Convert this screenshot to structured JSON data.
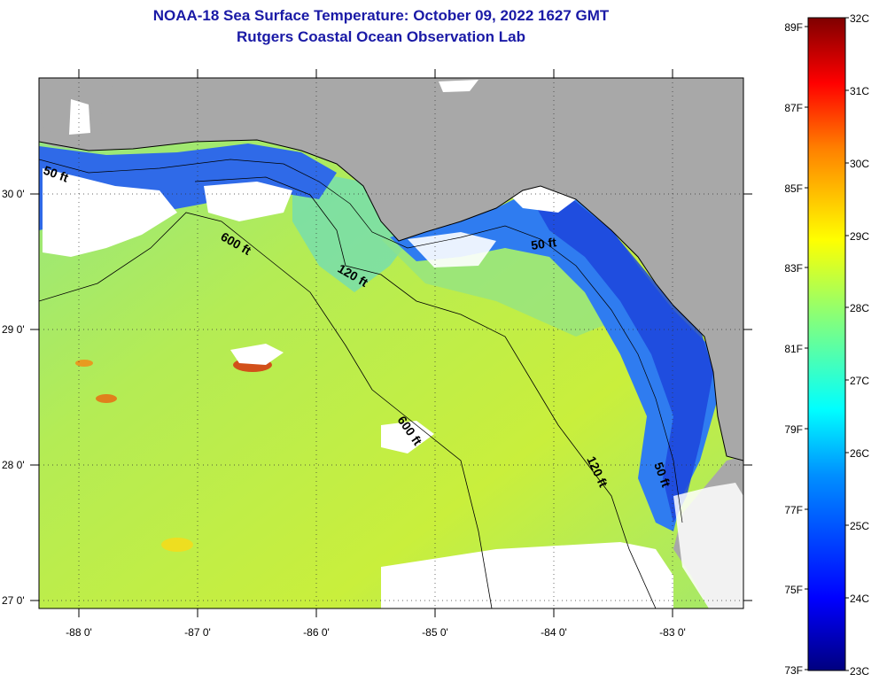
{
  "title": {
    "line1": "NOAA-18 Sea Surface Temperature:  October 09, 2022 1627 GMT",
    "line2": "Rutgers Coastal Ocean Observation Lab"
  },
  "map": {
    "lon_range": [
      -88.33,
      -82.45
    ],
    "lat_range": [
      26.96,
      30.87
    ],
    "lon_ticks": [
      {
        "value": -88,
        "label": "-88 0'"
      },
      {
        "value": -87,
        "label": "-87 0'"
      },
      {
        "value": -86,
        "label": "-86 0'"
      },
      {
        "value": -85,
        "label": "-85 0'"
      },
      {
        "value": -84,
        "label": "-84 0'"
      },
      {
        "value": -83,
        "label": "-83 0'"
      }
    ],
    "lat_ticks": [
      {
        "value": 30,
        "label": "30 0'"
      },
      {
        "value": 29,
        "label": "29 0'"
      },
      {
        "value": 28,
        "label": "28 0'"
      },
      {
        "value": 27,
        "label": "27 0'"
      }
    ],
    "grid": "dotted",
    "depth_labels": [
      "50 ft",
      "600 ft",
      "120 ft",
      "50 ft",
      "600 ft",
      "120 ft",
      "50 ft"
    ],
    "colors": {
      "land": "#a8a8a8",
      "cloud": "#ffffff",
      "water_warm": "#c8ee3a",
      "water_mid": "#9ae86a",
      "water_cool": "#55d7d2",
      "water_coastal": "#2f80f0",
      "water_cold": "#1c3bd8",
      "hot_spot": "#d23c1a"
    }
  },
  "colorbar": {
    "celsius": [
      "32C",
      "31C",
      "30C",
      "29C",
      "28C",
      "27C",
      "26C",
      "25C",
      "24C",
      "23C"
    ],
    "fahrenheit": [
      "89F",
      "87F",
      "85F",
      "83F",
      "81F",
      "79F",
      "77F",
      "75F",
      "73F"
    ],
    "range_c": [
      23,
      32
    ],
    "palette": [
      "#00007f",
      "#0000ff",
      "#0080ff",
      "#00ffff",
      "#80ff80",
      "#ffff00",
      "#ff8000",
      "#ff0000",
      "#7f0000"
    ]
  }
}
